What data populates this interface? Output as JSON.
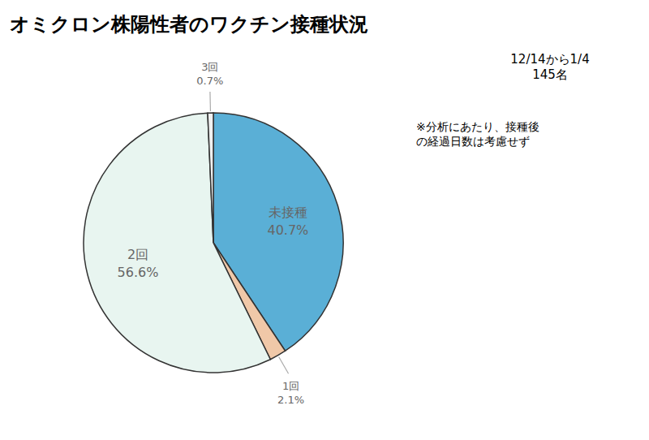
{
  "chart_data": {
    "type": "pie",
    "title": "オミクロン株陽性者のワクチン接種状況",
    "subtitle": "12/14から1/4\n145名",
    "note": "※分析にあたり、接種後\nの経過日数は考慮せず",
    "categories": [
      "未接種",
      "1回",
      "2回",
      "3回"
    ],
    "values": [
      40.7,
      2.1,
      56.6,
      0.7
    ],
    "value_labels": [
      "40.7%",
      "2.1%",
      "56.6%",
      "0.7%"
    ],
    "colors": [
      "#5aafd6",
      "#f0c8a8",
      "#e8f5f0",
      "#f0f0f0"
    ],
    "data_labels": true
  }
}
